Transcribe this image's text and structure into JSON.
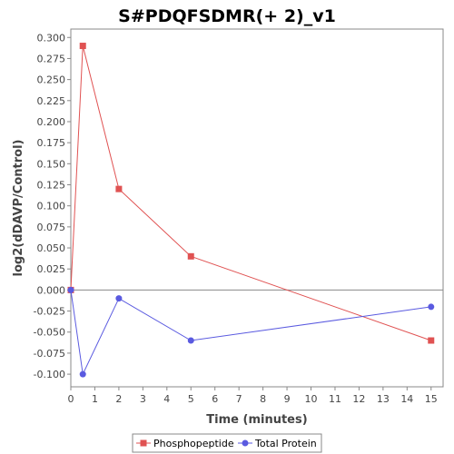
{
  "chart_data": {
    "type": "line",
    "title": "S#PDQFSDMR(+ 2)_v1",
    "xlabel": "Time (minutes)",
    "ylabel": "log2(dDAVP/Control)",
    "xlim": [
      0,
      15.5
    ],
    "ylim": [
      -0.115,
      0.31
    ],
    "x_ticks": [
      0,
      1,
      2,
      3,
      4,
      5,
      6,
      7,
      8,
      9,
      10,
      11,
      12,
      13,
      14,
      15
    ],
    "y_ticks": [
      0.3,
      0.275,
      0.25,
      0.225,
      0.2,
      0.175,
      0.15,
      0.125,
      0.1,
      0.075,
      0.05,
      0.025,
      0.0,
      -0.025,
      -0.05,
      -0.075,
      -0.1
    ],
    "y_tick_labels": [
      "0.300",
      "0.275",
      "0.250",
      "0.225",
      "0.200",
      "0.175",
      "0.150",
      "0.125",
      "0.100",
      "0.075",
      "0.050",
      "0.025",
      "0.000",
      "-0.025",
      "-0.050",
      "-0.075",
      "-0.100"
    ],
    "legend_position": "bottom",
    "grid": false,
    "zero_line": true,
    "series": [
      {
        "name": "Phosphopeptide",
        "color": "#e05252",
        "marker": "square",
        "x": [
          0,
          0.5,
          2,
          5,
          15
        ],
        "y": [
          0.0,
          0.29,
          0.12,
          0.04,
          -0.06
        ]
      },
      {
        "name": "Total Protein",
        "color": "#5a5ae0",
        "marker": "circle",
        "x": [
          0,
          0.5,
          2,
          5,
          15
        ],
        "y": [
          0.0,
          -0.1,
          -0.01,
          -0.06,
          -0.02
        ]
      }
    ]
  }
}
